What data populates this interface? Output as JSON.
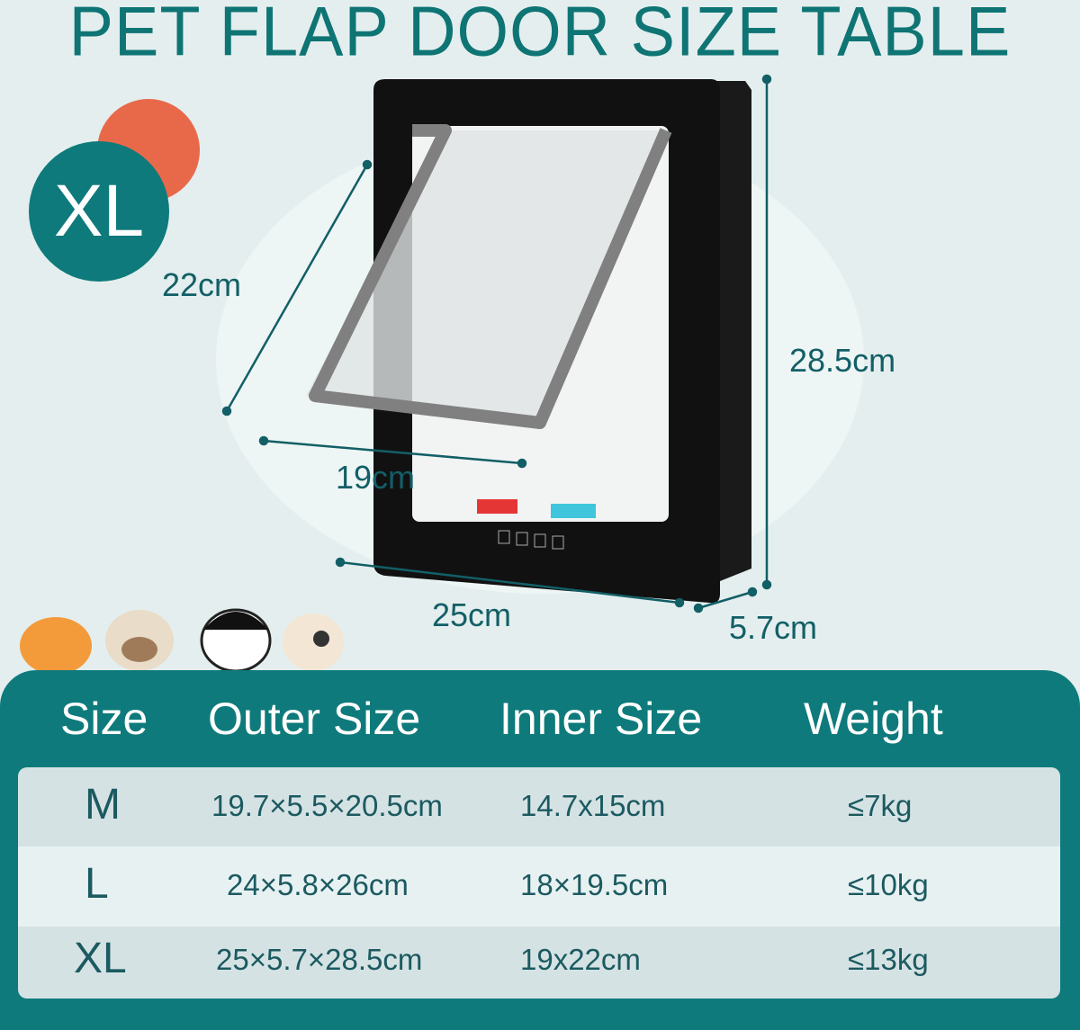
{
  "title": "PET FLAP DOOR SIZE TABLE",
  "badge": "XL",
  "colors": {
    "teal": "#0e7a7b",
    "orange": "#e8694a",
    "background": "#e4eeee"
  },
  "dimensions": {
    "flap_height": "22cm",
    "height": "28.5cm",
    "flap_width": "19cm",
    "width": "25cm",
    "depth": "5.7cm"
  },
  "table": {
    "headers": [
      "Size",
      "Outer Size",
      "Inner Size",
      "Weight"
    ],
    "rows": [
      {
        "size": "M",
        "outer": "19.7×5.5×20.5cm",
        "inner": "14.7x15cm",
        "weight": "≤7kg"
      },
      {
        "size": "L",
        "outer": "24×5.8×26cm",
        "inner": "18×19.5cm",
        "weight": "≤10kg"
      },
      {
        "size": "XL",
        "outer": "25×5.7×28.5cm",
        "inner": "19x22cm",
        "weight": "≤13kg"
      }
    ]
  }
}
